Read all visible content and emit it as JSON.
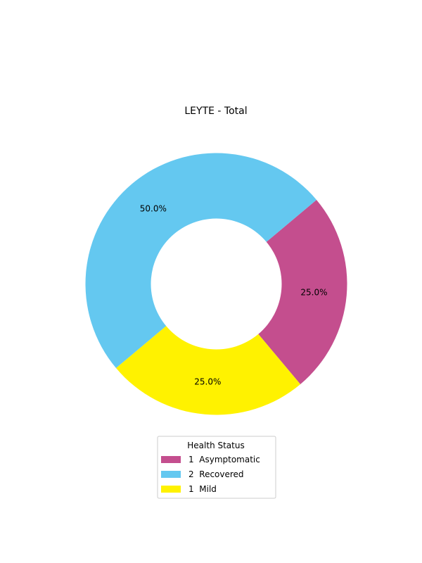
{
  "chart_data": {
    "type": "pie",
    "variant": "donut",
    "title": "LEYTE - Total",
    "legend_title": "Health Status",
    "legend_position": "bottom",
    "slices": [
      {
        "legend_label": "1  Asymptomatic",
        "value": 1,
        "percent_label": "25.0%",
        "color": "#c44e8e"
      },
      {
        "legend_label": "2  Recovered",
        "value": 2,
        "percent_label": "50.0%",
        "color": "#64c8f0"
      },
      {
        "legend_label": "1  Mild",
        "value": 1,
        "percent_label": "25.0%",
        "color": "#fff200"
      }
    ]
  }
}
